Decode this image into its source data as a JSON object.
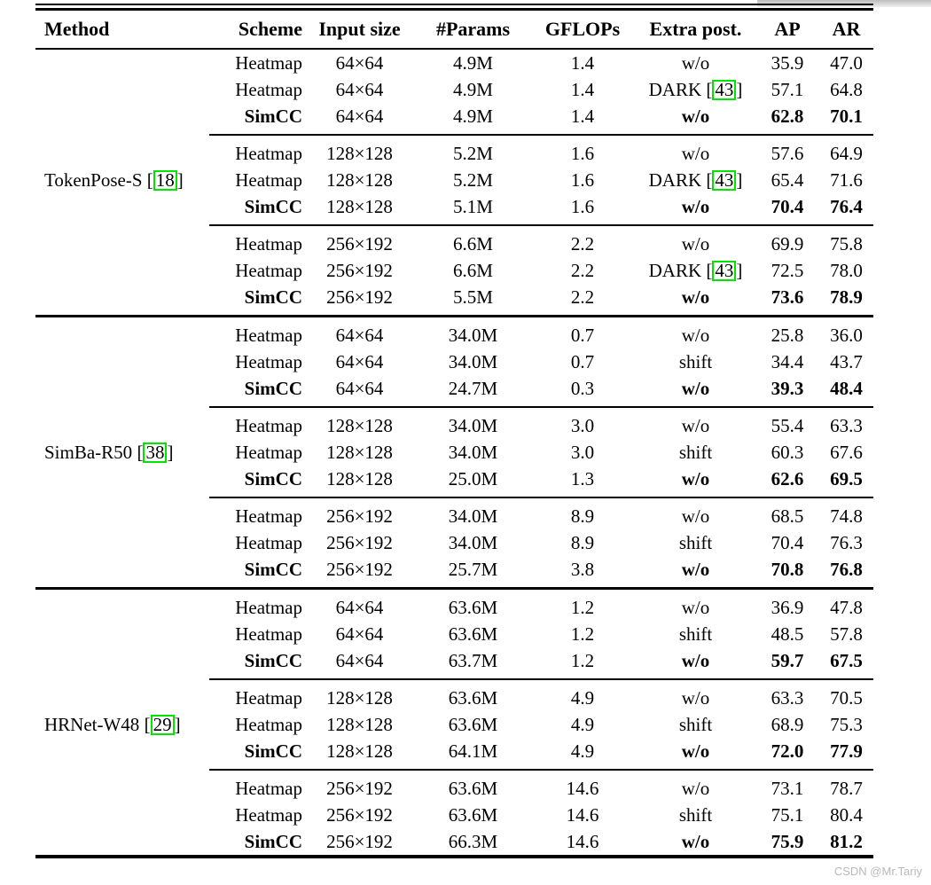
{
  "colors": {
    "citation_box": "#00e400",
    "watermark_text": "#b9b9b9"
  },
  "watermark": "CSDN @Mr.Tariy",
  "table": {
    "citation_prefix": " [",
    "citation_suffix": "]",
    "columns": [
      "Method",
      "Scheme",
      "Input size",
      "#Params",
      "GFLOPs",
      "Extra post.",
      "AP",
      "AR"
    ],
    "groups": [
      {
        "method": "TokenPose-S",
        "citation": "18",
        "blocks": [
          {
            "rows": [
              {
                "scheme": "Heatmap",
                "input": "64×64",
                "params": "4.9M",
                "gflops": "1.4",
                "extra": "w/o",
                "ap": "35.9",
                "ar": "47.0"
              },
              {
                "scheme": "Heatmap",
                "input": "64×64",
                "params": "4.9M",
                "gflops": "1.4",
                "extra": "DARK",
                "extra_cite": "43",
                "ap": "57.1",
                "ar": "64.8"
              },
              {
                "scheme": "SimCC",
                "input": "64×64",
                "params": "4.9M",
                "gflops": "1.4",
                "extra": "w/o",
                "ap": "62.8",
                "ar": "70.1"
              }
            ]
          },
          {
            "rows": [
              {
                "scheme": "Heatmap",
                "input": "128×128",
                "params": "5.2M",
                "gflops": "1.6",
                "extra": "w/o",
                "ap": "57.6",
                "ar": "64.9"
              },
              {
                "scheme": "Heatmap",
                "input": "128×128",
                "params": "5.2M",
                "gflops": "1.6",
                "extra": "DARK",
                "extra_cite": "43",
                "ap": "65.4",
                "ar": "71.6"
              },
              {
                "scheme": "SimCC",
                "input": "128×128",
                "params": "5.1M",
                "gflops": "1.6",
                "extra": "w/o",
                "ap": "70.4",
                "ar": "76.4"
              }
            ]
          },
          {
            "rows": [
              {
                "scheme": "Heatmap",
                "input": "256×192",
                "params": "6.6M",
                "gflops": "2.2",
                "extra": "w/o",
                "ap": "69.9",
                "ar": "75.8"
              },
              {
                "scheme": "Heatmap",
                "input": "256×192",
                "params": "6.6M",
                "gflops": "2.2",
                "extra": "DARK",
                "extra_cite": "43",
                "ap": "72.5",
                "ar": "78.0"
              },
              {
                "scheme": "SimCC",
                "input": "256×192",
                "params": "5.5M",
                "gflops": "2.2",
                "extra": "w/o",
                "ap": "73.6",
                "ar": "78.9"
              }
            ]
          }
        ]
      },
      {
        "method": "SimBa-R50",
        "citation": "38",
        "blocks": [
          {
            "rows": [
              {
                "scheme": "Heatmap",
                "input": "64×64",
                "params": "34.0M",
                "gflops": "0.7",
                "extra": "w/o",
                "ap": "25.8",
                "ar": "36.0"
              },
              {
                "scheme": "Heatmap",
                "input": "64×64",
                "params": "34.0M",
                "gflops": "0.7",
                "extra": "shift",
                "ap": "34.4",
                "ar": "43.7"
              },
              {
                "scheme": "SimCC",
                "input": "64×64",
                "params": "24.7M",
                "gflops": "0.3",
                "extra": "w/o",
                "ap": "39.3",
                "ar": "48.4"
              }
            ]
          },
          {
            "rows": [
              {
                "scheme": "Heatmap",
                "input": "128×128",
                "params": "34.0M",
                "gflops": "3.0",
                "extra": "w/o",
                "ap": "55.4",
                "ar": "63.3"
              },
              {
                "scheme": "Heatmap",
                "input": "128×128",
                "params": "34.0M",
                "gflops": "3.0",
                "extra": "shift",
                "ap": "60.3",
                "ar": "67.6"
              },
              {
                "scheme": "SimCC",
                "input": "128×128",
                "params": "25.0M",
                "gflops": "1.3",
                "extra": "w/o",
                "ap": "62.6",
                "ar": "69.5"
              }
            ]
          },
          {
            "rows": [
              {
                "scheme": "Heatmap",
                "input": "256×192",
                "params": "34.0M",
                "gflops": "8.9",
                "extra": "w/o",
                "ap": "68.5",
                "ar": "74.8"
              },
              {
                "scheme": "Heatmap",
                "input": "256×192",
                "params": "34.0M",
                "gflops": "8.9",
                "extra": "shift",
                "ap": "70.4",
                "ar": "76.3"
              },
              {
                "scheme": "SimCC",
                "input": "256×192",
                "params": "25.7M",
                "gflops": "3.8",
                "extra": "w/o",
                "ap": "70.8",
                "ar": "76.8"
              }
            ]
          }
        ]
      },
      {
        "method": "HRNet-W48",
        "citation": "29",
        "blocks": [
          {
            "rows": [
              {
                "scheme": "Heatmap",
                "input": "64×64",
                "params": "63.6M",
                "gflops": "1.2",
                "extra": "w/o",
                "ap": "36.9",
                "ar": "47.8"
              },
              {
                "scheme": "Heatmap",
                "input": "64×64",
                "params": "63.6M",
                "gflops": "1.2",
                "extra": "shift",
                "ap": "48.5",
                "ar": "57.8"
              },
              {
                "scheme": "SimCC",
                "input": "64×64",
                "params": "63.7M",
                "gflops": "1.2",
                "extra": "w/o",
                "ap": "59.7",
                "ar": "67.5"
              }
            ]
          },
          {
            "rows": [
              {
                "scheme": "Heatmap",
                "input": "128×128",
                "params": "63.6M",
                "gflops": "4.9",
                "extra": "w/o",
                "ap": "63.3",
                "ar": "70.5"
              },
              {
                "scheme": "Heatmap",
                "input": "128×128",
                "params": "63.6M",
                "gflops": "4.9",
                "extra": "shift",
                "ap": "68.9",
                "ar": "75.3"
              },
              {
                "scheme": "SimCC",
                "input": "128×128",
                "params": "64.1M",
                "gflops": "4.9",
                "extra": "w/o",
                "ap": "72.0",
                "ar": "77.9"
              }
            ]
          },
          {
            "rows": [
              {
                "scheme": "Heatmap",
                "input": "256×192",
                "params": "63.6M",
                "gflops": "14.6",
                "extra": "w/o",
                "ap": "73.1",
                "ar": "78.7"
              },
              {
                "scheme": "Heatmap",
                "input": "256×192",
                "params": "63.6M",
                "gflops": "14.6",
                "extra": "shift",
                "ap": "75.1",
                "ar": "80.4"
              },
              {
                "scheme": "SimCC",
                "input": "256×192",
                "params": "66.3M",
                "gflops": "14.6",
                "extra": "w/o",
                "ap": "75.9",
                "ar": "81.2"
              }
            ]
          }
        ]
      }
    ]
  }
}
